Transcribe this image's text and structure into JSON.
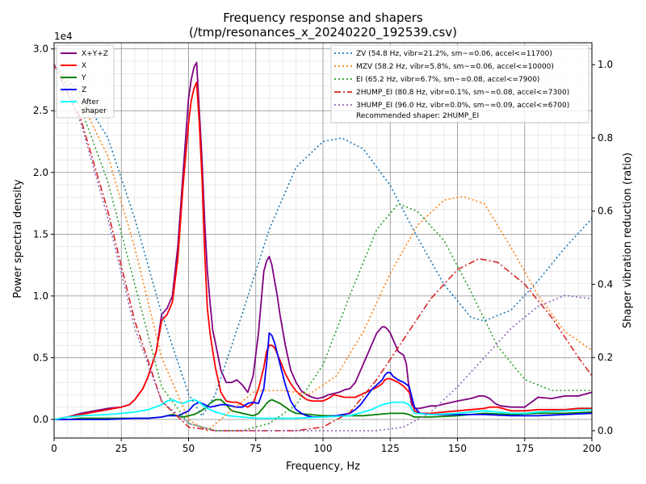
{
  "chart_data": {
    "type": "line",
    "title": "Frequency response and shapers",
    "subtitle": "(/tmp/resonances_x_20240220_192539.csv)",
    "xlabel": "Frequency, Hz",
    "ylabel": "Power spectral density",
    "y2label": "Shaper vibration reduction (ratio)",
    "y_offset_label": "1e4",
    "xlim": [
      0,
      200
    ],
    "ylim": [
      -0.15,
      3.05
    ],
    "y2lim": [
      -0.02,
      1.06
    ],
    "x_ticks": [
      "0",
      "25",
      "50",
      "75",
      "100",
      "125",
      "150",
      "175",
      "200"
    ],
    "y_ticks": [
      "0.0",
      "0.5",
      "1.0",
      "1.5",
      "2.0",
      "2.5",
      "3.0"
    ],
    "y2_ticks": [
      "0.0",
      "0.2",
      "0.4",
      "0.6",
      "0.8",
      "1.0"
    ],
    "grid": true,
    "psd_legend_position": "top-left",
    "shaper_legend_position": "top-right",
    "recommended": "Recommended shaper: 2HUMP_EI",
    "psd_series": [
      {
        "name": "X+Y+Z",
        "color": "#800080",
        "dash": "solid",
        "x": [
          0,
          5,
          10,
          15,
          20,
          25,
          28,
          30,
          33,
          35,
          38,
          40,
          42,
          44,
          46,
          48,
          50,
          51,
          52,
          53,
          54,
          55,
          56,
          57,
          58,
          59,
          60,
          62,
          64,
          66,
          68,
          70,
          72,
          74,
          76,
          78,
          79,
          80,
          81,
          82,
          83,
          84,
          86,
          88,
          90,
          92,
          94,
          96,
          98,
          100,
          102,
          104,
          106,
          108,
          110,
          112,
          114,
          116,
          118,
          120,
          122,
          123,
          124,
          125,
          126,
          128,
          130,
          131,
          132,
          132.5,
          133,
          134,
          136,
          138,
          140,
          142,
          144,
          146,
          148,
          150,
          155,
          158,
          160,
          162,
          164,
          166,
          170,
          175,
          180,
          185,
          190,
          195,
          200
        ],
        "y": [
          0,
          0.02,
          0.05,
          0.07,
          0.09,
          0.1,
          0.12,
          0.16,
          0.25,
          0.35,
          0.55,
          0.85,
          0.9,
          1.0,
          1.4,
          2.0,
          2.6,
          2.75,
          2.85,
          2.89,
          2.5,
          2.1,
          1.6,
          1.2,
          0.95,
          0.72,
          0.62,
          0.4,
          0.3,
          0.3,
          0.32,
          0.28,
          0.22,
          0.35,
          0.7,
          1.2,
          1.28,
          1.32,
          1.25,
          1.12,
          1.0,
          0.85,
          0.6,
          0.4,
          0.3,
          0.23,
          0.2,
          0.18,
          0.17,
          0.18,
          0.2,
          0.21,
          0.22,
          0.24,
          0.25,
          0.3,
          0.4,
          0.5,
          0.6,
          0.7,
          0.75,
          0.75,
          0.73,
          0.7,
          0.65,
          0.55,
          0.52,
          0.45,
          0.25,
          0.18,
          0.12,
          0.09,
          0.09,
          0.1,
          0.11,
          0.11,
          0.12,
          0.13,
          0.14,
          0.15,
          0.17,
          0.19,
          0.19,
          0.17,
          0.13,
          0.11,
          0.1,
          0.1,
          0.18,
          0.17,
          0.19,
          0.19,
          0.22
        ]
      },
      {
        "name": "X",
        "color": "#ff0000",
        "dash": "solid",
        "x": [
          0,
          5,
          10,
          15,
          20,
          25,
          28,
          30,
          33,
          35,
          38,
          40,
          42,
          44,
          46,
          48,
          50,
          51,
          52,
          53,
          54,
          55,
          56,
          57,
          58,
          59,
          60,
          62,
          64,
          66,
          68,
          70,
          72,
          74,
          76,
          78,
          79,
          80,
          81,
          82,
          84,
          86,
          88,
          90,
          92,
          94,
          96,
          98,
          100,
          102,
          104,
          106,
          108,
          110,
          112,
          114,
          116,
          118,
          120,
          122,
          123,
          124,
          125,
          126,
          128,
          130,
          132,
          133,
          134,
          136,
          138,
          140,
          145,
          150,
          155,
          160,
          162,
          165,
          170,
          175,
          180,
          185,
          190,
          195,
          200
        ],
        "y": [
          0,
          0.02,
          0.04,
          0.06,
          0.08,
          0.1,
          0.12,
          0.16,
          0.25,
          0.35,
          0.55,
          0.8,
          0.85,
          0.95,
          1.3,
          1.9,
          2.4,
          2.58,
          2.68,
          2.73,
          2.4,
          1.95,
          1.35,
          0.9,
          0.7,
          0.55,
          0.42,
          0.22,
          0.15,
          0.14,
          0.14,
          0.12,
          0.1,
          0.13,
          0.25,
          0.42,
          0.55,
          0.6,
          0.6,
          0.58,
          0.48,
          0.37,
          0.29,
          0.23,
          0.19,
          0.16,
          0.15,
          0.15,
          0.15,
          0.17,
          0.2,
          0.19,
          0.18,
          0.18,
          0.18,
          0.2,
          0.22,
          0.24,
          0.26,
          0.29,
          0.32,
          0.33,
          0.33,
          0.32,
          0.3,
          0.27,
          0.22,
          0.18,
          0.07,
          0.05,
          0.05,
          0.05,
          0.06,
          0.07,
          0.08,
          0.09,
          0.1,
          0.1,
          0.07,
          0.07,
          0.08,
          0.08,
          0.08,
          0.09,
          0.09
        ]
      },
      {
        "name": "Y",
        "color": "#008000",
        "dash": "solid",
        "x": [
          0,
          5,
          10,
          20,
          30,
          35,
          40,
          42,
          44,
          46,
          48,
          50,
          52,
          54,
          56,
          58,
          60,
          62,
          64,
          66,
          68,
          70,
          72,
          74,
          76,
          78,
          79,
          80,
          81,
          82,
          84,
          86,
          88,
          90,
          95,
          100,
          105,
          110,
          115,
          120,
          125,
          128,
          130,
          132,
          134,
          140,
          150,
          160,
          170,
          180,
          190,
          200
        ],
        "y": [
          0,
          0,
          0.01,
          0.01,
          0.01,
          0.01,
          0.02,
          0.03,
          0.04,
          0.03,
          0.02,
          0.03,
          0.04,
          0.06,
          0.09,
          0.13,
          0.16,
          0.16,
          0.12,
          0.07,
          0.06,
          0.05,
          0.04,
          0.03,
          0.05,
          0.1,
          0.13,
          0.15,
          0.16,
          0.15,
          0.13,
          0.1,
          0.07,
          0.05,
          0.04,
          0.03,
          0.03,
          0.03,
          0.03,
          0.04,
          0.05,
          0.05,
          0.05,
          0.04,
          0.02,
          0.02,
          0.03,
          0.05,
          0.04,
          0.05,
          0.05,
          0.06
        ]
      },
      {
        "name": "Z",
        "color": "#0000ff",
        "dash": "solid",
        "x": [
          0,
          10,
          20,
          30,
          35,
          40,
          42,
          44,
          46,
          48,
          50,
          52,
          54,
          56,
          58,
          60,
          62,
          64,
          66,
          68,
          70,
          72,
          74,
          76,
          78,
          79,
          80,
          81,
          82,
          84,
          86,
          88,
          90,
          92,
          94,
          96,
          98,
          100,
          105,
          110,
          112,
          114,
          116,
          118,
          120,
          122,
          123,
          124,
          125,
          126,
          128,
          130,
          132,
          134,
          136,
          140,
          150,
          160,
          170,
          180,
          190,
          200
        ],
        "y": [
          0,
          0,
          0,
          0.01,
          0.01,
          0.02,
          0.03,
          0.03,
          0.03,
          0.05,
          0.07,
          0.12,
          0.14,
          0.12,
          0.1,
          0.11,
          0.12,
          0.12,
          0.11,
          0.1,
          0.1,
          0.13,
          0.14,
          0.13,
          0.25,
          0.45,
          0.7,
          0.68,
          0.62,
          0.45,
          0.28,
          0.15,
          0.08,
          0.05,
          0.03,
          0.02,
          0.02,
          0.02,
          0.03,
          0.05,
          0.08,
          0.12,
          0.18,
          0.24,
          0.28,
          0.32,
          0.36,
          0.38,
          0.38,
          0.35,
          0.32,
          0.3,
          0.27,
          0.1,
          0.05,
          0.04,
          0.04,
          0.04,
          0.03,
          0.03,
          0.04,
          0.05
        ]
      },
      {
        "name": "After\nshaper",
        "color": "#00ffff",
        "dash": "solid",
        "x": [
          0,
          5,
          10,
          20,
          25,
          30,
          35,
          40,
          42,
          44,
          46,
          48,
          50,
          52,
          54,
          56,
          60,
          65,
          70,
          75,
          80,
          90,
          100,
          110,
          115,
          118,
          120,
          122,
          124,
          126,
          128,
          130,
          132,
          134,
          140,
          150,
          155,
          160,
          165,
          170,
          175,
          180,
          190,
          200
        ],
        "y": [
          0,
          0.02,
          0.03,
          0.04,
          0.05,
          0.06,
          0.08,
          0.12,
          0.15,
          0.16,
          0.14,
          0.13,
          0.15,
          0.16,
          0.14,
          0.1,
          0.06,
          0.03,
          0.02,
          0.01,
          0.01,
          0.01,
          0.02,
          0.03,
          0.06,
          0.08,
          0.1,
          0.12,
          0.13,
          0.14,
          0.14,
          0.14,
          0.12,
          0.05,
          0.04,
          0.05,
          0.06,
          0.07,
          0.06,
          0.05,
          0.05,
          0.06,
          0.07,
          0.08
        ]
      }
    ],
    "shaper_series": [
      {
        "name": "ZV (54.8 Hz, vibr=21.2%, sm~=0.06, accel<=11700)",
        "color": "#1f77b4",
        "dash": "dotted",
        "x": [
          0,
          10,
          20,
          30,
          40,
          50,
          55,
          60,
          70,
          80,
          90,
          100,
          107,
          115,
          125,
          135,
          145,
          155,
          160,
          170,
          180,
          190,
          200
        ],
        "y": [
          1.0,
          0.92,
          0.8,
          0.58,
          0.32,
          0.1,
          0.04,
          0.1,
          0.32,
          0.55,
          0.72,
          0.79,
          0.8,
          0.77,
          0.67,
          0.53,
          0.4,
          0.31,
          0.3,
          0.33,
          0.41,
          0.5,
          0.58
        ]
      },
      {
        "name": "MZV (58.2 Hz, vibr=5.8%, sm~=0.06, accel<=10000)",
        "color": "#ff7f0e",
        "dash": "dotted",
        "x": [
          0,
          10,
          20,
          30,
          40,
          50,
          57,
          65,
          75,
          85,
          95,
          105,
          115,
          125,
          135,
          145,
          152,
          160,
          170,
          180,
          190,
          200
        ],
        "y": [
          1.0,
          0.9,
          0.75,
          0.5,
          0.2,
          0.03,
          0.0,
          0.05,
          0.11,
          0.11,
          0.1,
          0.15,
          0.27,
          0.43,
          0.56,
          0.63,
          0.64,
          0.62,
          0.5,
          0.37,
          0.27,
          0.22
        ]
      },
      {
        "name": "EI (65.2 Hz, vibr=6.7%, sm~=0.08, accel<=7900)",
        "color": "#2ca02c",
        "dash": "dotted",
        "x": [
          0,
          10,
          20,
          30,
          40,
          50,
          60,
          70,
          80,
          90,
          100,
          110,
          120,
          128,
          135,
          145,
          155,
          165,
          175,
          185,
          195,
          200
        ],
        "y": [
          1.0,
          0.88,
          0.68,
          0.4,
          0.12,
          0.02,
          0.0,
          0.0,
          0.02,
          0.07,
          0.18,
          0.37,
          0.55,
          0.62,
          0.6,
          0.52,
          0.38,
          0.23,
          0.14,
          0.11,
          0.11,
          0.11
        ]
      },
      {
        "name": "2HUMP_EI (80.8 Hz, vibr=0.1%, sm~=0.08, accel<=7300)",
        "color": "#d62728",
        "dash": "dashdot",
        "x": [
          0,
          10,
          20,
          30,
          40,
          50,
          60,
          70,
          80,
          90,
          100,
          110,
          120,
          130,
          140,
          150,
          158,
          165,
          175,
          185,
          195,
          200
        ],
        "y": [
          1.0,
          0.85,
          0.6,
          0.3,
          0.08,
          0.01,
          0.0,
          0.0,
          0.0,
          0.0,
          0.01,
          0.05,
          0.14,
          0.25,
          0.36,
          0.44,
          0.47,
          0.46,
          0.4,
          0.31,
          0.2,
          0.15
        ]
      },
      {
        "name": "3HUMP_EI (96.0 Hz, vibr=0.0%, sm~=0.09, accel<=6700)",
        "color": "#9467bd",
        "dash": "dotted",
        "x": [
          0,
          10,
          20,
          30,
          40,
          50,
          60,
          70,
          80,
          90,
          100,
          110,
          120,
          130,
          140,
          150,
          160,
          170,
          180,
          190,
          200
        ],
        "y": [
          1.0,
          0.84,
          0.58,
          0.28,
          0.08,
          0.02,
          0.0,
          0.0,
          0.0,
          0.0,
          0.0,
          0.0,
          0.0,
          0.01,
          0.05,
          0.12,
          0.2,
          0.28,
          0.34,
          0.37,
          0.36
        ]
      }
    ]
  }
}
